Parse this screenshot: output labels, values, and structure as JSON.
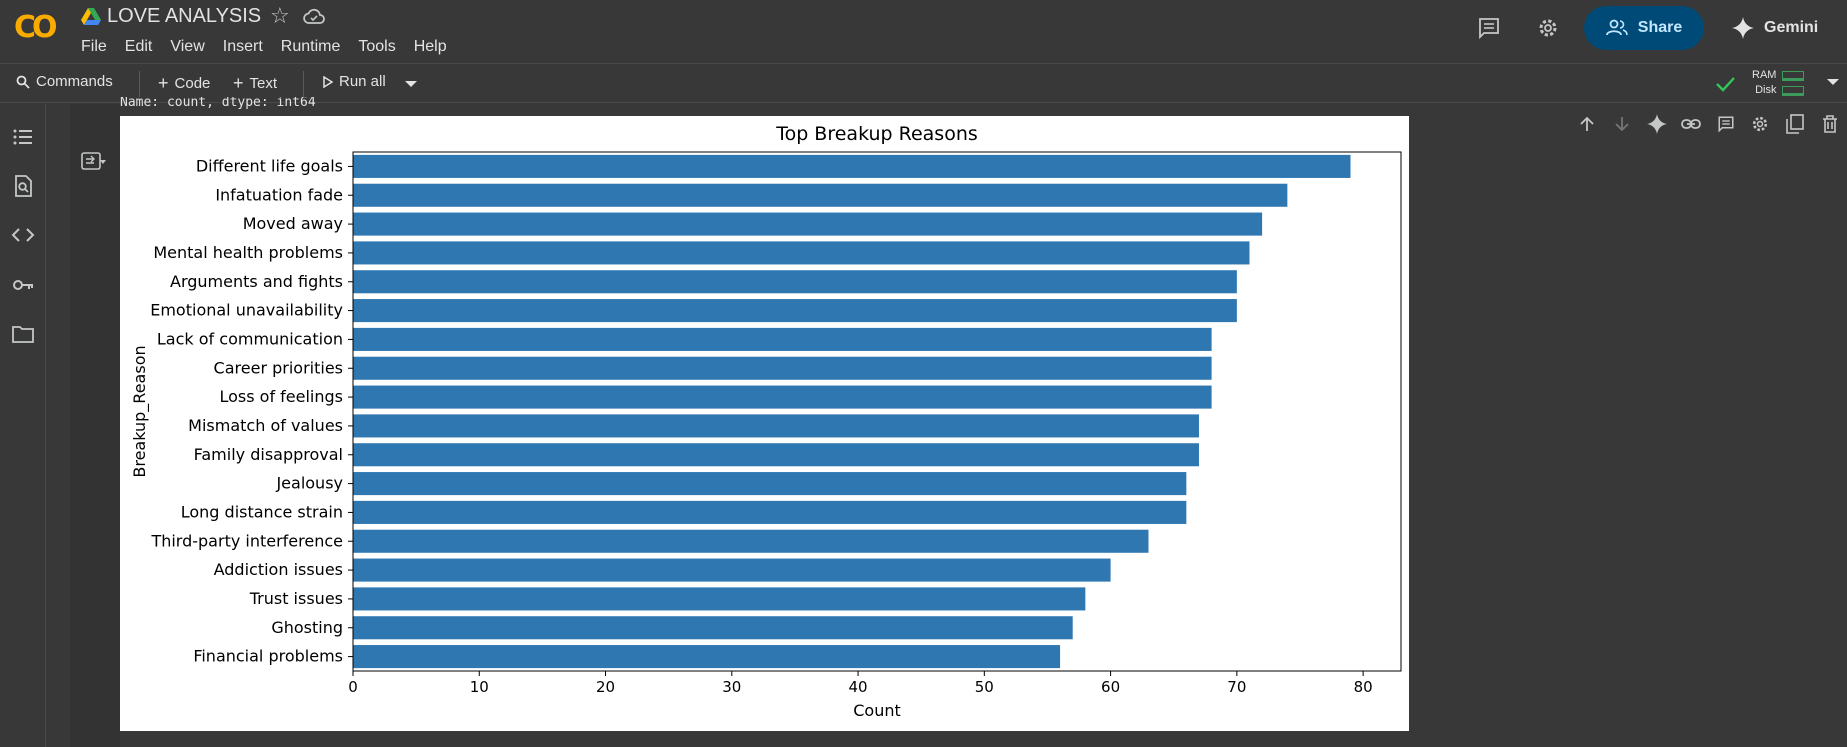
{
  "header": {
    "logo_text": "CO",
    "title": "LOVE ANALYSIS",
    "menu": [
      "File",
      "Edit",
      "View",
      "Insert",
      "Runtime",
      "Tools",
      "Help"
    ],
    "share_label": "Share",
    "gemini_label": "Gemini"
  },
  "toolbar": {
    "commands_label": "Commands",
    "code_label": "Code",
    "text_label": "Text",
    "run_all_label": "Run all",
    "ram_label": "RAM",
    "disk_label": "Disk"
  },
  "cell": {
    "output_text": "Name: count, dtype: int64"
  },
  "colors": {
    "bar": "#2f77b1",
    "accent": "#004a77",
    "brand_yellow": "#f9ab00",
    "brand_orange": "#e8710a"
  },
  "chart_data": {
    "type": "bar",
    "orientation": "horizontal",
    "title": "Top Breakup Reasons",
    "xlabel": "Count",
    "ylabel": "Breakup_Reason",
    "xlim": [
      0,
      83
    ],
    "xticks": [
      0,
      10,
      20,
      30,
      40,
      50,
      60,
      70,
      80
    ],
    "categories": [
      "Different life goals",
      "Infatuation fade",
      "Moved away",
      "Mental health problems",
      "Arguments and fights",
      "Emotional unavailability",
      "Lack of communication",
      "Career priorities",
      "Loss of feelings",
      "Mismatch of values",
      "Family disapproval",
      "Jealousy",
      "Long distance strain",
      "Third-party interference",
      "Addiction issues",
      "Trust issues",
      "Ghosting",
      "Financial problems"
    ],
    "values": [
      79,
      74,
      72,
      71,
      70,
      70,
      68,
      68,
      68,
      67,
      67,
      66,
      66,
      63,
      60,
      58,
      57,
      56
    ]
  }
}
